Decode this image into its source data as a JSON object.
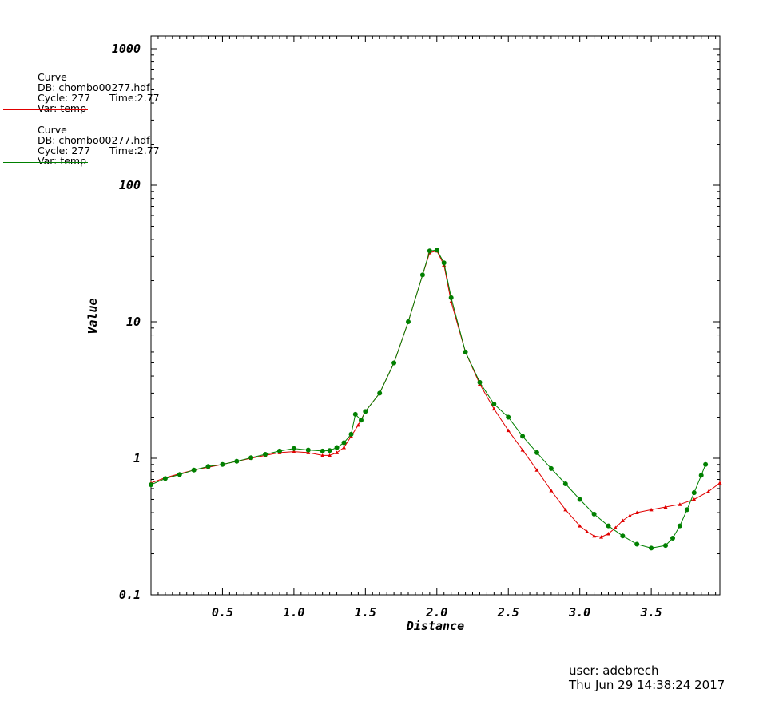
{
  "legend": [
    {
      "heading": "Curve",
      "db": "DB: chombo00277.hdf",
      "cycle": "Cycle: 277",
      "time": "Time:2.77",
      "var": "Var: temp",
      "color": "#e00000"
    },
    {
      "heading": "Curve",
      "db": "DB: chombo00277.hdf",
      "cycle": "Cycle: 277",
      "time": "Time:2.77",
      "var": "Var: temp",
      "color": "#008000"
    }
  ],
  "footer": {
    "user": "user: adebrech",
    "date": "Thu Jun 29 14:38:24 2017"
  },
  "chart_data": {
    "type": "line",
    "xlabel": "Distance",
    "ylabel": "Value",
    "yscale": "log",
    "xlim": [
      0.0,
      3.98
    ],
    "ylim": [
      0.1,
      1300
    ],
    "x_ticks": [
      0.5,
      1.0,
      1.5,
      2.0,
      2.5,
      3.0,
      3.5
    ],
    "x_tick_labels": [
      "0.5",
      "1.0",
      "1.5",
      "2.0",
      "2.5",
      "3.0",
      "3.5"
    ],
    "y_ticks": [
      0.1,
      1,
      10,
      100,
      1000
    ],
    "y_tick_labels": [
      "0.1",
      "1",
      "10",
      "100",
      "1000"
    ],
    "grid": false,
    "series": [
      {
        "color": "#e00000",
        "marker": "triangle",
        "x": [
          0.0,
          0.1,
          0.2,
          0.3,
          0.4,
          0.5,
          0.6,
          0.7,
          0.8,
          0.9,
          1.0,
          1.1,
          1.2,
          1.25,
          1.3,
          1.35,
          1.4,
          1.45,
          1.5,
          1.6,
          1.7,
          1.8,
          1.9,
          1.95,
          2.0,
          2.05,
          2.1,
          2.2,
          2.3,
          2.4,
          2.5,
          2.6,
          2.7,
          2.8,
          2.9,
          3.0,
          3.05,
          3.1,
          3.15,
          3.2,
          3.25,
          3.3,
          3.35,
          3.4,
          3.5,
          3.6,
          3.7,
          3.8,
          3.9,
          3.98
        ],
        "y": [
          0.66,
          0.72,
          0.77,
          0.82,
          0.86,
          0.9,
          0.95,
          1.0,
          1.05,
          1.1,
          1.12,
          1.1,
          1.05,
          1.05,
          1.1,
          1.2,
          1.45,
          1.75,
          2.2,
          3.0,
          5.0,
          10.0,
          22.0,
          32.0,
          33.0,
          26.0,
          14.0,
          6.0,
          3.5,
          2.3,
          1.6,
          1.15,
          0.82,
          0.58,
          0.42,
          0.32,
          0.29,
          0.27,
          0.265,
          0.28,
          0.31,
          0.35,
          0.38,
          0.4,
          0.42,
          0.44,
          0.46,
          0.5,
          0.57,
          0.66
        ]
      },
      {
        "color": "#008000",
        "marker": "circle",
        "x": [
          0.0,
          0.1,
          0.2,
          0.3,
          0.4,
          0.5,
          0.6,
          0.7,
          0.8,
          0.9,
          1.0,
          1.1,
          1.2,
          1.25,
          1.3,
          1.35,
          1.4,
          1.43,
          1.47,
          1.5,
          1.6,
          1.7,
          1.8,
          1.9,
          1.95,
          2.0,
          2.05,
          2.1,
          2.2,
          2.3,
          2.4,
          2.5,
          2.6,
          2.7,
          2.8,
          2.9,
          3.0,
          3.1,
          3.2,
          3.3,
          3.4,
          3.5,
          3.6,
          3.65,
          3.7,
          3.75,
          3.8,
          3.85,
          3.88
        ],
        "y": [
          0.64,
          0.71,
          0.76,
          0.82,
          0.87,
          0.9,
          0.95,
          1.01,
          1.07,
          1.13,
          1.18,
          1.15,
          1.13,
          1.14,
          1.2,
          1.3,
          1.5,
          2.1,
          1.9,
          2.2,
          3.0,
          5.0,
          10.0,
          22.0,
          33.0,
          33.5,
          27.0,
          15.0,
          6.0,
          3.6,
          2.5,
          2.0,
          1.45,
          1.1,
          0.84,
          0.65,
          0.5,
          0.39,
          0.32,
          0.27,
          0.235,
          0.22,
          0.23,
          0.26,
          0.32,
          0.42,
          0.56,
          0.75,
          0.9
        ]
      }
    ]
  }
}
